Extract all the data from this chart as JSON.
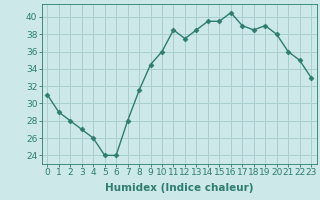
{
  "x": [
    0,
    1,
    2,
    3,
    4,
    5,
    6,
    7,
    8,
    9,
    10,
    11,
    12,
    13,
    14,
    15,
    16,
    17,
    18,
    19,
    20,
    21,
    22,
    23
  ],
  "y": [
    31,
    29,
    28,
    27,
    26,
    24,
    24,
    28,
    31.5,
    34.5,
    36,
    38.5,
    37.5,
    38.5,
    39.5,
    39.5,
    40.5,
    39,
    38.5,
    39,
    38,
    36,
    35,
    33
  ],
  "line_color": "#2e7d6e",
  "bg_color": "#cce8e8",
  "grid_color": "#aacfcf",
  "xlabel": "Humidex (Indice chaleur)",
  "ylim": [
    23,
    41.5
  ],
  "xlim": [
    -0.5,
    23.5
  ],
  "yticks": [
    24,
    26,
    28,
    30,
    32,
    34,
    36,
    38,
    40
  ],
  "xticks": [
    0,
    1,
    2,
    3,
    4,
    5,
    6,
    7,
    8,
    9,
    10,
    11,
    12,
    13,
    14,
    15,
    16,
    17,
    18,
    19,
    20,
    21,
    22,
    23
  ],
  "xtick_labels": [
    "0",
    "1",
    "2",
    "3",
    "4",
    "5",
    "6",
    "7",
    "8",
    "9",
    "10",
    "11",
    "12",
    "13",
    "14",
    "15",
    "16",
    "17",
    "18",
    "19",
    "20",
    "21",
    "22",
    "23"
  ],
  "marker": "D",
  "marker_size": 2.5,
  "line_width": 1.0,
  "font_size_ticks": 6.5,
  "font_size_xlabel": 7.5
}
